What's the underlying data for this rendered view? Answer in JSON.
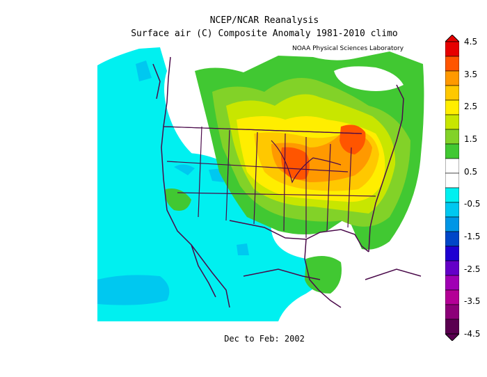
{
  "title_line1": "NCEP/NCAR Reanalysis",
  "title_line2": "Surface air (C) Composite Anomaly 1981-2010 climo",
  "credit": "NOAA Physical Sciences Laboratory",
  "footer": "Dec to Feb: 2002",
  "colorbar": {
    "ticks": [
      "4.5",
      "3.5",
      "2.5",
      "1.5",
      "0.5",
      "-0.5",
      "-1.5",
      "-2.5",
      "-3.5",
      "-4.5"
    ],
    "colors": [
      "#e60000",
      "#ff5500",
      "#ff9900",
      "#ffc800",
      "#ffee00",
      "#c8e600",
      "#82d228",
      "#41c832",
      "#ffffff",
      "#ffffff",
      "#00f0f0",
      "#00c8f0",
      "#0096e6",
      "#0046c8",
      "#1e00d2",
      "#6400c8",
      "#a000b4",
      "#b40096",
      "#8c0078",
      "#5a0050"
    ]
  },
  "legend": {
    "anomaly_colors": {
      "ge_4": "#e60000",
      "3p5_4": "#ff5500",
      "3_3p5": "#ff9900",
      "2p5_3": "#ffc800",
      "2_2p5": "#ffee00",
      "1p5_2": "#c8e600",
      "1_1p5": "#82d228",
      "0p5_1": "#41c832",
      "neutral": "#ffffff",
      "m0p5_m1": "#00f0f0",
      "m1_m1p5": "#00c8f0"
    }
  }
}
